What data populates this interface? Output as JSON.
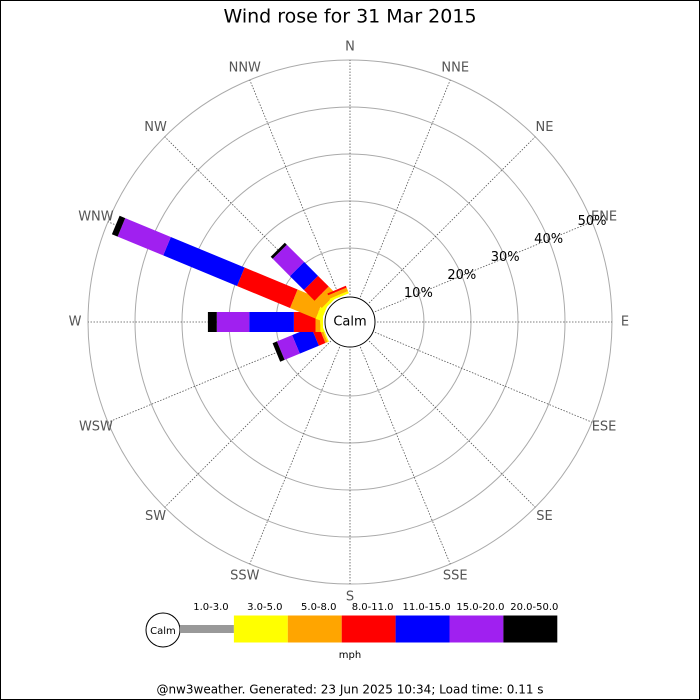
{
  "chart_data": {
    "type": "windrose",
    "title": "Wind rose for 31 Mar 2015",
    "categories": [
      "N",
      "NNE",
      "NE",
      "ENE",
      "E",
      "ESE",
      "SE",
      "SSE",
      "S",
      "SSW",
      "SW",
      "WSW",
      "W",
      "WNW",
      "NW",
      "NNW"
    ],
    "calm_label": "Calm",
    "units": "mph",
    "ylim": [
      0,
      50
    ],
    "yticks": [
      {
        "value": 10,
        "label": "10%"
      },
      {
        "value": 20,
        "label": "20%"
      },
      {
        "value": 30,
        "label": "30%"
      },
      {
        "value": 40,
        "label": "40%"
      },
      {
        "value": 50,
        "label": "50%"
      }
    ],
    "series": [
      {
        "name": "1.0-3.0",
        "color": "#999999",
        "values": [
          0,
          0,
          0,
          0,
          0,
          0,
          0,
          0,
          0,
          0,
          0,
          0,
          0,
          0,
          0,
          0
        ]
      },
      {
        "name": "3.0-5.0",
        "color": "#ffff00",
        "values": [
          0,
          0,
          0,
          0,
          0,
          0,
          0,
          0,
          0,
          0,
          0,
          0.3,
          0.6,
          1.3,
          0.6,
          0.5
        ]
      },
      {
        "name": "5.0-8.0",
        "color": "#ffa500",
        "values": [
          0,
          0,
          0,
          0,
          0,
          0,
          0,
          0,
          0,
          0,
          0,
          0.5,
          1.0,
          5.9,
          2.2,
          0.8
        ]
      },
      {
        "name": "8.0-11.0",
        "color": "#ff0000",
        "values": [
          0,
          0,
          0,
          0,
          0,
          0,
          0,
          0,
          0,
          0,
          0,
          1.5,
          4.6,
          12.2,
          3.2,
          0.4
        ]
      },
      {
        "name": "11.0-15.0",
        "color": "#0000ff",
        "values": [
          0,
          0,
          0,
          0,
          0,
          0,
          0,
          0,
          0,
          0,
          0,
          4.4,
          9.5,
          17.0,
          4.2,
          0
        ]
      },
      {
        "name": "15.0-20.0",
        "color": "#a020f0",
        "values": [
          0,
          0,
          0,
          0,
          0,
          0,
          0,
          0,
          0,
          0,
          0,
          3.5,
          6.9,
          10.5,
          5.2,
          0
        ]
      },
      {
        "name": "20.0-50.0",
        "color": "#000000",
        "values": [
          0,
          0,
          0,
          0,
          0,
          0,
          0,
          0,
          0,
          0,
          0,
          1.0,
          1.9,
          1.3,
          0.6,
          0
        ]
      }
    ],
    "footer": "@nw3weather. Generated: 23 Jun 2025 10:34; Load time: 0.11 s"
  }
}
